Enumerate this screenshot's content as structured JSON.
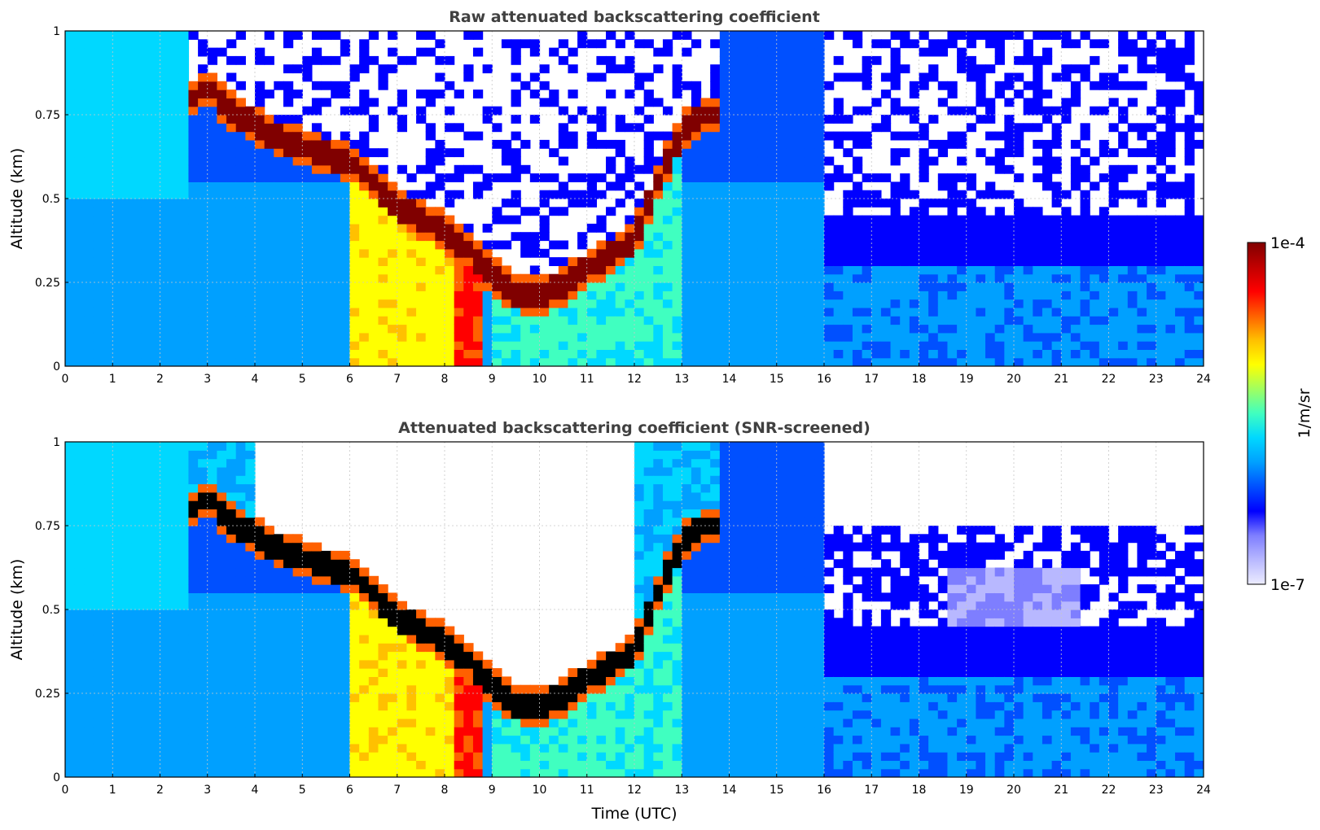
{
  "chart_data": [
    {
      "type": "heatmap",
      "title": "Raw attenuated backscattering coefficient",
      "xlabel": "",
      "ylabel": "Altitude (km)",
      "xlim": [
        0,
        24
      ],
      "ylim": [
        0,
        1
      ],
      "x_ticks": [
        "0",
        "1",
        "2",
        "3",
        "4",
        "5",
        "6",
        "7",
        "8",
        "9",
        "10",
        "11",
        "12",
        "13",
        "14",
        "15",
        "16",
        "17",
        "18",
        "19",
        "20",
        "21",
        "22",
        "23",
        "24"
      ],
      "y_ticks": [
        "0",
        "0.25",
        "0.5",
        "0.75",
        "1"
      ],
      "grid": true,
      "screened": false,
      "layer": {
        "description_points_time": [
          2.7,
          3.0,
          3.5,
          3.8,
          4.0,
          4.5,
          5.5,
          6.0,
          6.5,
          7.0,
          7.5,
          8.0,
          8.5,
          9.0,
          9.5,
          10.0,
          10.5,
          11.0,
          11.5,
          12.0,
          12.5,
          13.0,
          13.5
        ],
        "description_points_alt": [
          0.8,
          0.84,
          0.76,
          0.74,
          0.72,
          0.68,
          0.63,
          0.61,
          0.55,
          0.48,
          0.44,
          0.4,
          0.35,
          0.27,
          0.22,
          0.21,
          0.24,
          0.29,
          0.33,
          0.38,
          0.55,
          0.7,
          0.75
        ]
      }
    },
    {
      "type": "heatmap",
      "title": "Attenuated backscattering coefficient (SNR-screened)",
      "xlabel": "Time (UTC)",
      "ylabel": "Altitude (km)",
      "xlim": [
        0,
        24
      ],
      "ylim": [
        0,
        1
      ],
      "x_ticks": [
        "0",
        "1",
        "2",
        "3",
        "4",
        "5",
        "6",
        "7",
        "8",
        "9",
        "10",
        "11",
        "12",
        "13",
        "14",
        "15",
        "16",
        "17",
        "18",
        "19",
        "20",
        "21",
        "22",
        "23",
        "24"
      ],
      "y_ticks": [
        "0",
        "0.25",
        "0.5",
        "0.75",
        "1"
      ],
      "grid": true,
      "screened": true,
      "layer": {
        "description_points_time": [
          2.7,
          3.0,
          3.5,
          3.8,
          4.0,
          4.5,
          5.5,
          6.0,
          6.5,
          7.0,
          7.5,
          8.0,
          8.5,
          9.0,
          9.5,
          10.0,
          10.5,
          11.0,
          11.5,
          12.0,
          12.5,
          13.0,
          13.5
        ],
        "description_points_alt": [
          0.8,
          0.84,
          0.76,
          0.74,
          0.72,
          0.68,
          0.63,
          0.61,
          0.55,
          0.48,
          0.44,
          0.4,
          0.35,
          0.27,
          0.22,
          0.21,
          0.24,
          0.29,
          0.33,
          0.38,
          0.55,
          0.7,
          0.75
        ]
      }
    }
  ],
  "colorbar": {
    "label": "1/m/sr",
    "max_label": "1e-4",
    "min_label": "1e-7",
    "scale": "log",
    "range": [
      1e-07,
      0.0001
    ],
    "colormap": "jet",
    "colors": [
      "#ececff",
      "#b8b8ff",
      "#7e7eff",
      "#0000ff",
      "#0050ff",
      "#00a0ff",
      "#00d8ff",
      "#40ffc0",
      "#a0ff60",
      "#ffff00",
      "#ffc000",
      "#ff6000",
      "#ff0000",
      "#c00000",
      "#800000"
    ]
  }
}
